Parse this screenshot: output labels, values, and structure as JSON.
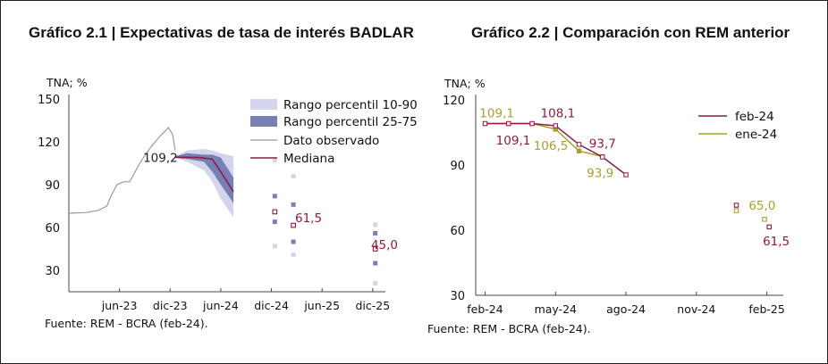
{
  "chart_data": [
    {
      "type": "line",
      "title": "Gráfico 2.1 | Expectativas de tasa de interés BADLAR",
      "ylabel": "TNA; %",
      "ylim": [
        15,
        150
      ],
      "yticks": [
        30,
        60,
        90,
        120,
        150
      ],
      "x_tick_labels": [
        "jun-23",
        "dic-23",
        "jun-24",
        "dic-24",
        "jun-25",
        "dic-25"
      ],
      "x_tick_months": [
        6,
        12,
        18,
        24,
        30,
        36
      ],
      "xlim_months": [
        0,
        37.5
      ],
      "source": "Fuente: REM - BCRA (feb-24).",
      "legend": [
        {
          "label": "Rango percentil 10-90",
          "color": "#d3d6ea"
        },
        {
          "label": "Rango percentil 25-75",
          "color": "#7680b4"
        },
        {
          "label": "Dato observado",
          "color": "#9a9a9a"
        },
        {
          "label": "Mediana",
          "color": "#8e1b45"
        }
      ],
      "observed": {
        "x": [
          0,
          2,
          3.5,
          4.5,
          5,
          5.7,
          6.5,
          7.2,
          8.5,
          9.8,
          10.8,
          11.3,
          11.8,
          12.3,
          12.6
        ],
        "y": [
          70,
          70.5,
          72,
          75,
          82,
          90,
          92,
          92,
          106,
          117,
          124,
          127,
          130,
          125,
          114
        ]
      },
      "median": {
        "x": [
          12.6,
          13.5,
          15.5,
          17,
          18,
          19.5
        ],
        "y": [
          109.2,
          109.2,
          109,
          107.8,
          99,
          85
        ]
      },
      "band_10_90": {
        "x": [
          12.6,
          14,
          16,
          17,
          18,
          19.5,
          19.5
        ],
        "upper": [
          110,
          114,
          115,
          114,
          112,
          110,
          116
        ],
        "lower": [
          109,
          106,
          100,
          92,
          80,
          67,
          62
        ]
      },
      "band_25_75": {
        "x": [
          12.6,
          14,
          16,
          17,
          18,
          19.5
        ],
        "upper": [
          109.8,
          112,
          111,
          111,
          109,
          95
        ],
        "lower": [
          108.8,
          108,
          106,
          99,
          90,
          77
        ]
      },
      "dec24": {
        "x": [
          24.4,
          26.6
        ],
        "p10": [
          47,
          41
        ],
        "p25": [
          64,
          50
        ],
        "median": [
          71,
          61.5
        ],
        "p75": [
          82,
          76
        ],
        "p90": [
          107,
          96
        ]
      },
      "dec25": {
        "x": [
          36.3
        ],
        "p10": [
          21
        ],
        "p25": [
          35
        ],
        "median": [
          45
        ],
        "p75": [
          56
        ],
        "p90": [
          62
        ]
      },
      "annotations": [
        {
          "text": "109,2",
          "x": 8.8,
          "y": 109.2,
          "color": "#222222"
        },
        {
          "text": "61,5",
          "x": 26.8,
          "y": 67,
          "color": "#8e1b45"
        },
        {
          "text": "45,0",
          "x": 35.8,
          "y": 48,
          "color": "#8e1b45"
        }
      ]
    },
    {
      "type": "line",
      "title": "Gráfico 2.2 | Comparación con REM anterior",
      "ylabel": "TNA; %",
      "ylim": [
        30,
        120
      ],
      "yticks": [
        30,
        60,
        90,
        120
      ],
      "x_tick_labels": [
        "feb-24",
        "may-24",
        "ago-24",
        "nov-24",
        "feb-25"
      ],
      "x_tick_months": [
        0,
        3,
        6,
        9,
        12
      ],
      "xlim_months": [
        -0.4,
        12.7
      ],
      "source": "Fuente: REM - BCRA (feb-24).",
      "series": [
        {
          "name": "feb-24",
          "color": "#8e1b45",
          "x": [
            0,
            1,
            2,
            3,
            4,
            5,
            6
          ],
          "y": [
            109.1,
            109.1,
            109.1,
            108.1,
            99.5,
            93.7,
            85.5
          ],
          "extra_x": [
            10.7,
            12.1
          ],
          "extra_y": [
            71.5,
            61.5
          ]
        },
        {
          "name": "ene-24",
          "color": "#a5a32b",
          "x": [
            0,
            1,
            2,
            3,
            4,
            5
          ],
          "y": [
            109.1,
            109.1,
            109.1,
            106.5,
            96.5,
            93.9
          ],
          "extra_x": [
            10.7,
            11.9
          ],
          "extra_y": [
            69,
            65
          ]
        }
      ],
      "annotations": [
        {
          "text": "109,1",
          "x": 0.5,
          "y": 114,
          "color": "#a5a32b"
        },
        {
          "text": "109,1",
          "x": 1.2,
          "y": 101.5,
          "color": "#8e1b45"
        },
        {
          "text": "108,1",
          "x": 3.1,
          "y": 114,
          "color": "#8e1b45"
        },
        {
          "text": "106,5",
          "x": 2.8,
          "y": 99,
          "color": "#a5a32b"
        },
        {
          "text": "93,7",
          "x": 5.0,
          "y": 100,
          "color": "#8e1b45"
        },
        {
          "text": "93,9",
          "x": 4.9,
          "y": 86.5,
          "color": "#a5a32b"
        },
        {
          "text": "65,0",
          "x": 11.8,
          "y": 71.5,
          "color": "#a5a32b"
        },
        {
          "text": "61,5",
          "x": 12.4,
          "y": 55,
          "color": "#8e1b45"
        }
      ]
    }
  ]
}
